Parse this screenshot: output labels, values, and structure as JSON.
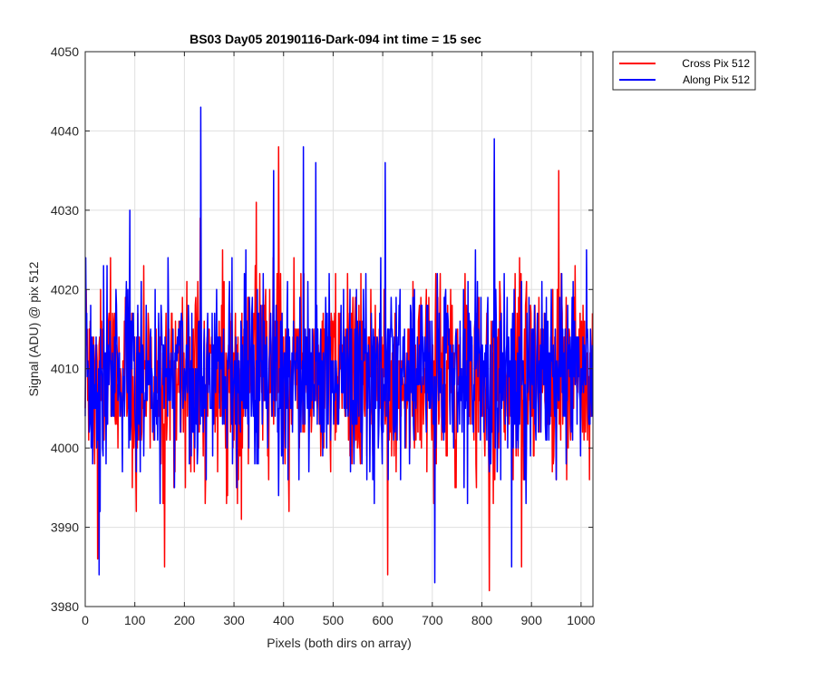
{
  "chart_data": {
    "type": "line",
    "title": "BS03 Day05 20190116-Dark-094 int time = 15 sec",
    "xlabel": "Pixels (both dirs on array)",
    "ylabel": "Signal (ADU) @ pix 512",
    "xlim": [
      0,
      1024
    ],
    "ylim": [
      3980,
      4050
    ],
    "xticks": [
      0,
      100,
      200,
      300,
      400,
      500,
      600,
      700,
      800,
      900,
      1000
    ],
    "yticks": [
      3980,
      3990,
      4000,
      4010,
      4020,
      4030,
      4040,
      4050
    ],
    "grid": true,
    "legend_position": "outside-top-right",
    "series": [
      {
        "name": "Cross Pix 512",
        "color": "#ff0000",
        "mean": 4009,
        "noise_std": 6,
        "num_points": 1024,
        "notable_points": [
          [
            25,
            3986
          ],
          [
            160,
            3985
          ],
          [
            232,
            4029
          ],
          [
            345,
            4031
          ],
          [
            390,
            4038
          ],
          [
            610,
            3984
          ],
          [
            815,
            3982
          ],
          [
            825,
            4035
          ],
          [
            880,
            3985
          ],
          [
            955,
            4035
          ]
        ]
      },
      {
        "name": "Along Pix 512",
        "color": "#0000ff",
        "mean": 4009,
        "noise_std": 6,
        "num_points": 1024,
        "notable_points": [
          [
            28,
            3984
          ],
          [
            90,
            4030
          ],
          [
            233,
            4043
          ],
          [
            380,
            4035
          ],
          [
            440,
            4038
          ],
          [
            465,
            4036
          ],
          [
            605,
            4036
          ],
          [
            705,
            3983
          ],
          [
            825,
            4039
          ],
          [
            860,
            3985
          ]
        ]
      }
    ]
  }
}
